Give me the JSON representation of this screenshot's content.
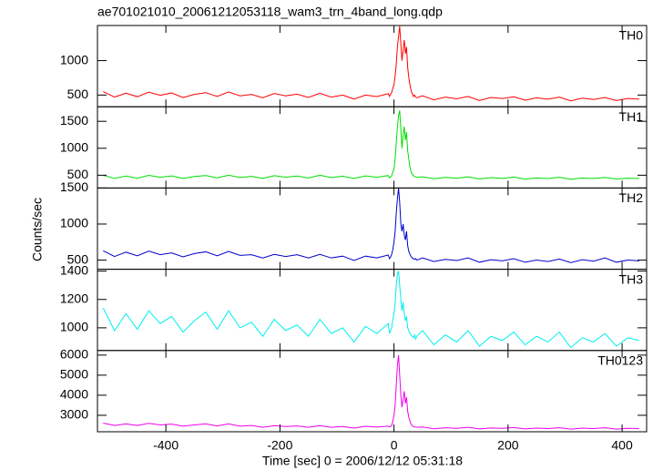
{
  "title": "ae701021010_20061212053118_wam3_trn_4band_long.qdp",
  "xlabel": "Time [sec] 0 = 2006/12/12 05:31:18",
  "ylabel": "Counts/sec",
  "chart_data": [
    {
      "type": "line",
      "xlim": [
        -520,
        443
      ],
      "ylim": [
        330,
        1510
      ],
      "yticks": [
        500,
        1000
      ],
      "xticks": [
        -400,
        -200,
        0,
        200,
        400
      ],
      "x": [
        -510,
        -490,
        -470,
        -450,
        -430,
        -410,
        -390,
        -370,
        -350,
        -330,
        -310,
        -290,
        -270,
        -250,
        -230,
        -210,
        -190,
        -170,
        -150,
        -130,
        -110,
        -90,
        -70,
        -50,
        -30,
        -10,
        -8,
        -6,
        -4,
        -2,
        0,
        2,
        4,
        6,
        8,
        10,
        12,
        14,
        16,
        18,
        20,
        22,
        24,
        26,
        28,
        30,
        32,
        34,
        36,
        38,
        40,
        50,
        70,
        90,
        110,
        130,
        150,
        170,
        190,
        210,
        230,
        250,
        270,
        290,
        310,
        330,
        350,
        370,
        390,
        410,
        430
      ],
      "series": [
        {
          "name": "TH0",
          "color": "#ff0000",
          "values": [
            550,
            470,
            528,
            476,
            543,
            496,
            530,
            464,
            510,
            535,
            480,
            545,
            488,
            510,
            460,
            522,
            488,
            512,
            465,
            525,
            470,
            500,
            440,
            500,
            478,
            520,
            480,
            510,
            540,
            600,
            650,
            780,
            950,
            1200,
            1350,
            1500,
            1250,
            1000,
            1150,
            1300,
            1100,
            1200,
            900,
            750,
            650,
            560,
            520,
            480,
            500,
            470,
            460,
            490,
            430,
            470,
            445,
            480,
            420,
            465,
            450,
            475,
            425,
            460,
            440,
            470,
            415,
            455,
            435,
            465,
            420,
            450,
            440
          ]
        }
      ]
    },
    {
      "type": "line",
      "xlim": [
        -520,
        443
      ],
      "ylim": [
        263,
        1770
      ],
      "yticks": [
        500,
        1000,
        1500
      ],
      "xticks": [
        -400,
        -200,
        0,
        200,
        400
      ],
      "x": [
        -510,
        -490,
        -470,
        -450,
        -430,
        -410,
        -390,
        -370,
        -350,
        -330,
        -310,
        -290,
        -270,
        -250,
        -230,
        -210,
        -190,
        -170,
        -150,
        -130,
        -110,
        -90,
        -70,
        -50,
        -30,
        -10,
        -8,
        -6,
        -4,
        -2,
        0,
        2,
        4,
        6,
        8,
        10,
        12,
        14,
        16,
        18,
        20,
        22,
        24,
        26,
        28,
        30,
        32,
        34,
        36,
        38,
        40,
        50,
        70,
        90,
        110,
        130,
        150,
        170,
        190,
        210,
        230,
        250,
        270,
        290,
        310,
        330,
        350,
        370,
        390,
        410,
        430
      ],
      "series": [
        {
          "name": "TH1",
          "color": "#00dd00",
          "values": [
            500,
            440,
            485,
            446,
            497,
            461,
            488,
            440,
            476,
            494,
            452,
            500,
            458,
            479,
            443,
            491,
            464,
            485,
            449,
            500,
            455,
            482,
            440,
            488,
            461,
            494,
            450,
            470,
            490,
            560,
            620,
            800,
            1100,
            1400,
            1600,
            1700,
            1350,
            1000,
            1250,
            1400,
            1150,
            1300,
            950,
            800,
            650,
            560,
            520,
            490,
            480,
            470,
            460,
            470,
            435,
            460,
            445,
            470,
            430,
            455,
            440,
            465,
            428,
            450,
            438,
            462,
            425,
            448,
            440,
            458,
            430,
            445,
            438
          ]
        }
      ]
    },
    {
      "type": "line",
      "xlim": [
        -520,
        443
      ],
      "ylim": [
        373,
        1500
      ],
      "yticks": [
        500,
        1000,
        1500
      ],
      "xticks": [
        -400,
        -200,
        0,
        200,
        400
      ],
      "x": [
        -510,
        -490,
        -470,
        -450,
        -430,
        -410,
        -390,
        -370,
        -350,
        -330,
        -310,
        -290,
        -270,
        -250,
        -230,
        -210,
        -190,
        -170,
        -150,
        -130,
        -110,
        -90,
        -70,
        -50,
        -30,
        -10,
        -8,
        -6,
        -4,
        -2,
        0,
        2,
        4,
        6,
        8,
        10,
        12,
        14,
        16,
        18,
        20,
        22,
        24,
        26,
        28,
        30,
        32,
        34,
        36,
        38,
        40,
        50,
        70,
        90,
        110,
        130,
        150,
        170,
        190,
        210,
        230,
        250,
        270,
        290,
        310,
        330,
        350,
        370,
        390,
        410,
        430
      ],
      "series": [
        {
          "name": "TH2",
          "color": "#0000cc",
          "values": [
            630,
            550,
            610,
            560,
            625,
            575,
            600,
            545,
            590,
            615,
            560,
            620,
            565,
            575,
            530,
            580,
            550,
            575,
            530,
            580,
            530,
            555,
            495,
            555,
            530,
            570,
            520,
            540,
            580,
            650,
            750,
            900,
            1150,
            1350,
            1500,
            1300,
            1000,
            900,
            1000,
            850,
            780,
            900,
            700,
            620,
            580,
            550,
            530,
            520,
            510,
            520,
            500,
            530,
            480,
            510,
            495,
            530,
            470,
            505,
            490,
            520,
            470,
            500,
            480,
            515,
            465,
            505,
            485,
            530,
            470,
            500,
            490
          ]
        }
      ]
    },
    {
      "type": "line",
      "xlim": [
        -520,
        443
      ],
      "ylim": [
        840,
        1413
      ],
      "yticks": [
        1000,
        1200,
        1400
      ],
      "xticks": [
        -400,
        -200,
        0,
        200,
        400
      ],
      "x": [
        -510,
        -490,
        -470,
        -450,
        -430,
        -410,
        -390,
        -370,
        -350,
        -330,
        -310,
        -290,
        -270,
        -250,
        -230,
        -210,
        -190,
        -170,
        -150,
        -130,
        -110,
        -90,
        -70,
        -50,
        -30,
        -10,
        -8,
        -6,
        -4,
        -2,
        0,
        2,
        4,
        6,
        8,
        10,
        12,
        14,
        16,
        18,
        20,
        22,
        24,
        26,
        28,
        30,
        32,
        34,
        36,
        38,
        40,
        50,
        70,
        90,
        110,
        130,
        150,
        170,
        190,
        210,
        230,
        250,
        270,
        290,
        310,
        330,
        350,
        370,
        390,
        410,
        430
      ],
      "series": [
        {
          "name": "TH3",
          "color": "#00eeee",
          "values": [
            1140,
            980,
            1100,
            990,
            1120,
            1030,
            1080,
            970,
            1050,
            1110,
            990,
            1120,
            1000,
            1040,
            940,
            1060,
            980,
            1020,
            940,
            1060,
            960,
            1000,
            900,
            1010,
            960,
            1030,
            960,
            980,
            1000,
            1060,
            1100,
            1180,
            1300,
            1380,
            1400,
            1300,
            1200,
            1120,
            1180,
            1100,
            1050,
            1080,
            1000,
            980,
            960,
            950,
            940,
            930,
            950,
            920,
            940,
            980,
            880,
            950,
            900,
            980,
            870,
            940,
            910,
            970,
            880,
            940,
            900,
            970,
            860,
            930,
            900,
            960,
            870,
            930,
            910
          ]
        }
      ]
    },
    {
      "type": "line",
      "xlim": [
        -520,
        443
      ],
      "ylim": [
        2180,
        6230
      ],
      "yticks": [
        3000,
        4000,
        5000,
        6000
      ],
      "xticks": [
        -400,
        -200,
        0,
        200,
        400
      ],
      "x": [
        -510,
        -490,
        -470,
        -450,
        -430,
        -410,
        -390,
        -370,
        -350,
        -330,
        -310,
        -290,
        -270,
        -250,
        -230,
        -210,
        -190,
        -170,
        -150,
        -130,
        -110,
        -90,
        -70,
        -50,
        -30,
        -10,
        -8,
        -6,
        -4,
        -2,
        0,
        2,
        4,
        6,
        8,
        10,
        12,
        14,
        16,
        18,
        20,
        22,
        24,
        26,
        28,
        30,
        32,
        34,
        36,
        38,
        40,
        50,
        70,
        90,
        110,
        130,
        150,
        170,
        190,
        210,
        230,
        250,
        270,
        290,
        310,
        330,
        350,
        370,
        390,
        410,
        430
      ],
      "series": [
        {
          "name": "TH0123",
          "color": "#ee00ee",
          "values": [
            2610,
            2490,
            2570,
            2490,
            2600,
            2520,
            2560,
            2460,
            2520,
            2570,
            2470,
            2570,
            2460,
            2490,
            2400,
            2480,
            2440,
            2470,
            2400,
            2480,
            2400,
            2440,
            2360,
            2450,
            2410,
            2460,
            2420,
            2450,
            2500,
            2700,
            3000,
            3500,
            4500,
            5500,
            6000,
            5000,
            4000,
            3400,
            3800,
            4200,
            3600,
            3900,
            3200,
            2900,
            2700,
            2550,
            2480,
            2440,
            2420,
            2410,
            2400,
            2420,
            2330,
            2380,
            2350,
            2400,
            2320,
            2370,
            2350,
            2390,
            2320,
            2360,
            2340,
            2380,
            2310,
            2360,
            2340,
            2380,
            2310,
            2350,
            2340
          ]
        }
      ]
    }
  ]
}
